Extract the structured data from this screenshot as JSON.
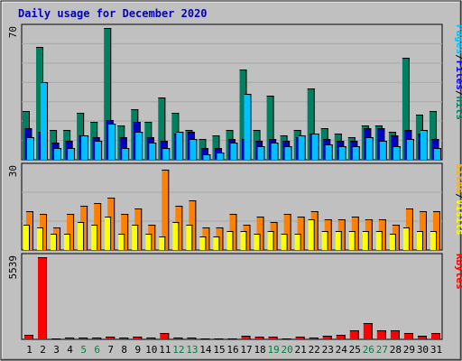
{
  "chart_data": {
    "type": "bar",
    "title": "Daily usage for December 2020",
    "days": [
      "1",
      "2",
      "3",
      "4",
      "5",
      "6",
      "7",
      "8",
      "9",
      "10",
      "11",
      "12",
      "13",
      "14",
      "15",
      "16",
      "17",
      "18",
      "19",
      "20",
      "21",
      "22",
      "23",
      "24",
      "25",
      "26",
      "27",
      "28",
      "29",
      "30",
      "31"
    ],
    "weekend_days": [
      "5",
      "6",
      "12",
      "13",
      "19",
      "20",
      "26",
      "27"
    ],
    "panels": [
      {
        "id": "traffic",
        "ymax_label": "70",
        "ymax": 70,
        "legend": [
          {
            "text": "Pages",
            "color": "#00c0ff"
          },
          {
            "text": "/",
            "color": "#000000"
          },
          {
            "text": "Files",
            "color": "#0000ff"
          },
          {
            "text": "/",
            "color": "#000000"
          },
          {
            "text": "Hits",
            "color": "#008060"
          }
        ],
        "series": [
          {
            "name": "Hits",
            "color": "#008060",
            "values": [
              26,
              60,
              16,
              16,
              25,
              20,
              70,
              18,
              27,
              20,
              33,
              25,
              16,
              11,
              13,
              16,
              48,
              16,
              34,
              13,
              16,
              38,
              17,
              14,
              12,
              18,
              18,
              15,
              54,
              24,
              26
            ]
          },
          {
            "name": "Files",
            "color": "#0000c0",
            "values": [
              17,
              15,
              9,
              10,
              13,
              12,
              21,
              12,
              20,
              12,
              10,
              14,
              15,
              6,
              6,
              11,
              11,
              10,
              11,
              10,
              12,
              14,
              11,
              10,
              10,
              17,
              17,
              13,
              16,
              14,
              11
            ]
          },
          {
            "name": "Pages",
            "color": "#00c0ff",
            "values": [
              12,
              41,
              6,
              6,
              13,
              10,
              19,
              6,
              15,
              9,
              6,
              15,
              11,
              3,
              4,
              9,
              35,
              7,
              9,
              7,
              13,
              14,
              8,
              7,
              7,
              12,
              10,
              7,
              11,
              16,
              6
            ]
          }
        ]
      },
      {
        "id": "visits",
        "ymax_label": "30",
        "ymax": 30,
        "legend": [
          {
            "text": "Sites",
            "color": "#ffb000"
          },
          {
            "text": "/",
            "color": "#000000"
          },
          {
            "text": "Visits",
            "color": "#ffff00"
          }
        ],
        "series": [
          {
            "name": "Visits",
            "color": "#ff8000",
            "values": [
              14,
              13,
              8,
              13,
              16,
              17,
              19,
              13,
              15,
              9,
              29,
              16,
              18,
              8,
              8,
              13,
              9,
              12,
              10,
              13,
              12,
              14,
              11,
              11,
              12,
              11,
              11,
              9,
              15,
              14,
              14
            ]
          },
          {
            "name": "Sites",
            "color": "#ffff00",
            "values": [
              9,
              8,
              6,
              6,
              10,
              9,
              12,
              6,
              9,
              6,
              5,
              10,
              9,
              5,
              5,
              7,
              7,
              6,
              7,
              6,
              6,
              11,
              7,
              7,
              7,
              7,
              7,
              6,
              8,
              7,
              7
            ]
          }
        ]
      },
      {
        "id": "kbytes",
        "ymax_label": "5539",
        "ymax": 5539,
        "legend": [
          {
            "text": "KBytes",
            "color": "#ff0000"
          }
        ],
        "series": [
          {
            "name": "KBytes",
            "color": "#ff0000",
            "values": [
              330,
              5539,
              60,
              130,
              150,
              140,
              170,
              110,
              170,
              110,
              450,
              140,
              100,
              90,
              80,
              90,
              270,
              200,
              190,
              50,
              170,
              150,
              260,
              300,
              610,
              1090,
              630,
              630,
              430,
              230,
              410
            ]
          }
        ]
      }
    ],
    "colors": {
      "frame_bg": "#c0c0c0",
      "title": "#0000c0",
      "weekday": "#000000",
      "weekend": "#008040",
      "gridline": "#a8a8a8"
    }
  }
}
